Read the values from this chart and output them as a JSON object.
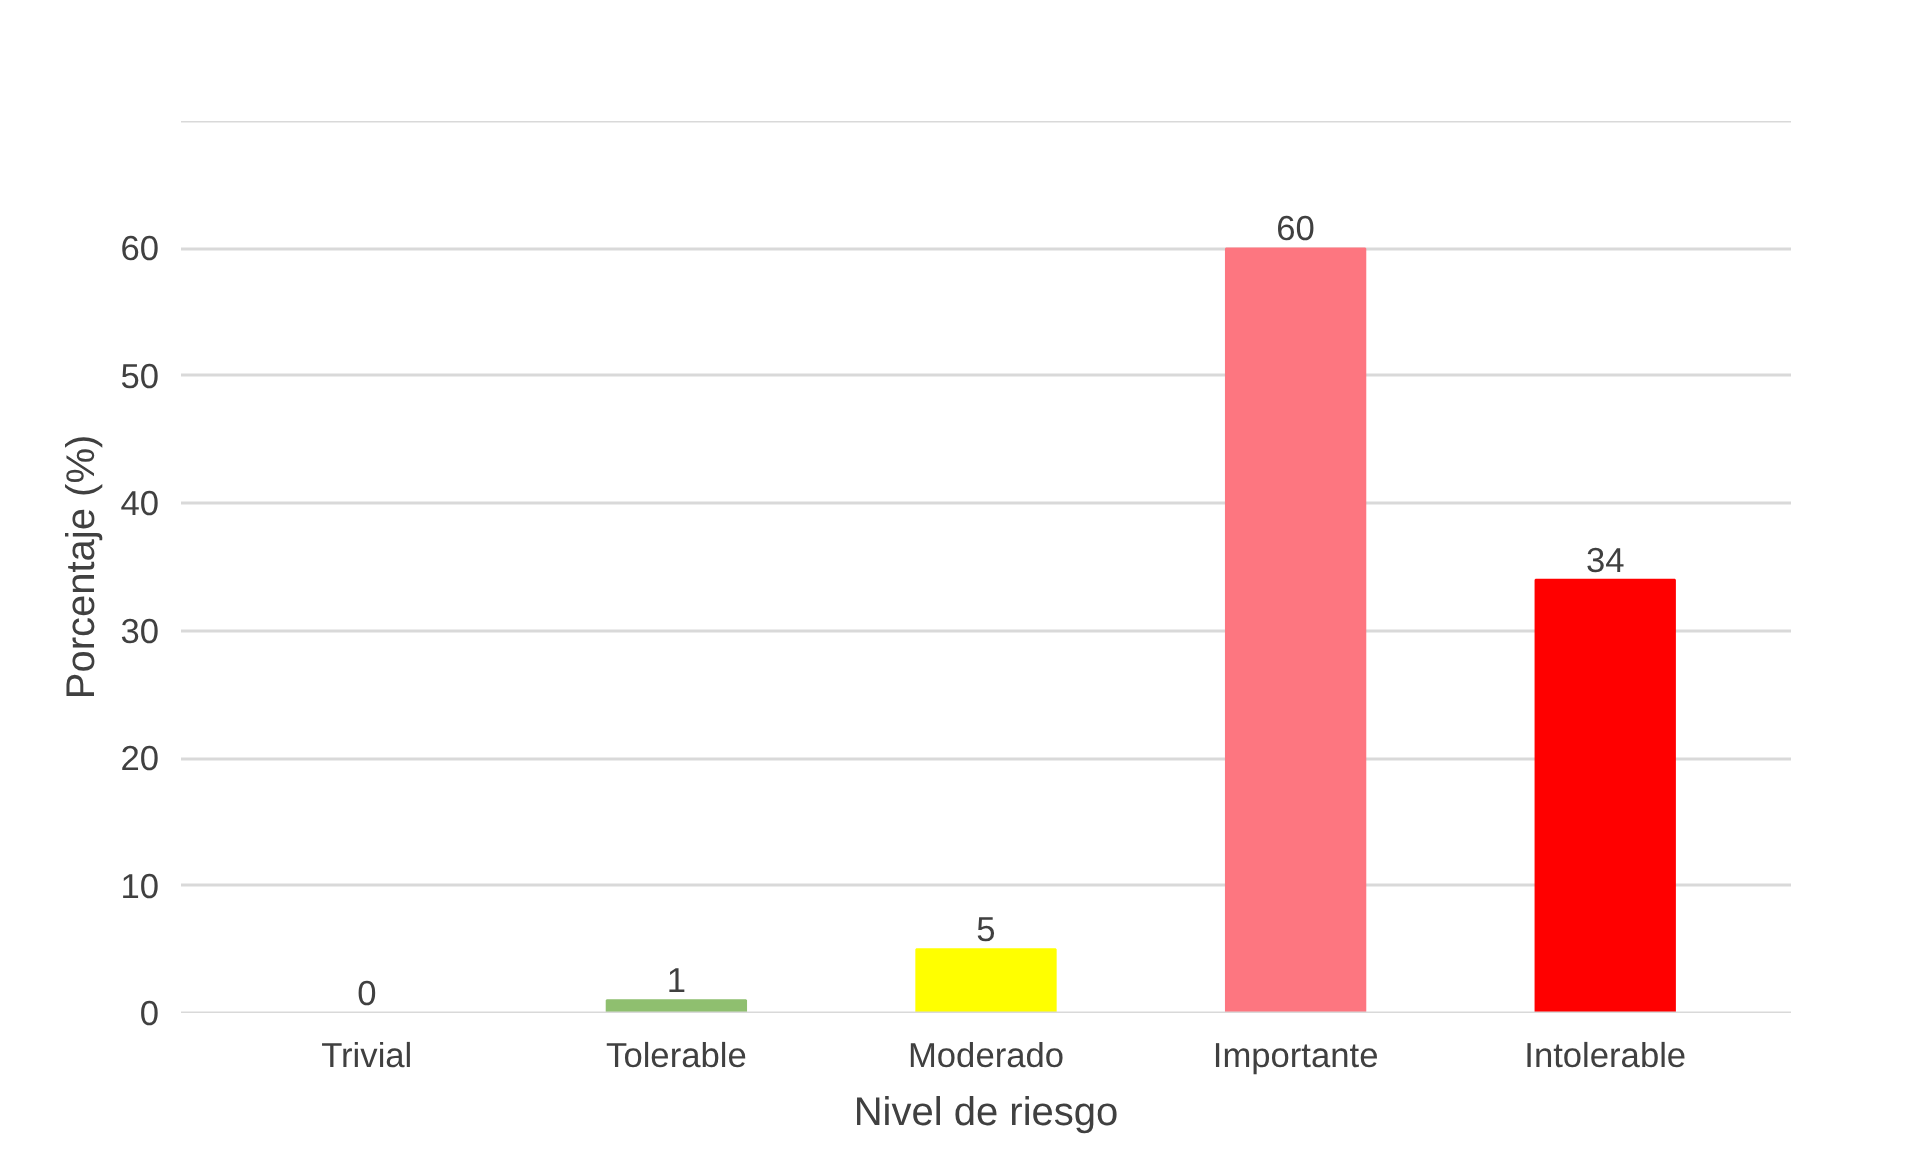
{
  "chart_data": {
    "type": "bar",
    "xlabel": "Nivel de riesgo",
    "ylabel": "Porcentaje (%)",
    "categories": [
      "Trivial",
      "Tolerable",
      "Moderado",
      "Importante",
      "Intolerable"
    ],
    "values": [
      0,
      1,
      5,
      60,
      34
    ],
    "colors": [
      "#00843f",
      "#8fbf6f",
      "#ffff00",
      "#fd7680",
      "#ff0000"
    ],
    "ylim": [
      0,
      70
    ],
    "yticks": [
      0,
      10,
      20,
      30,
      40,
      50,
      60,
      {
        "value": 70,
        "label": null
      }
    ],
    "grid": "y",
    "data_labels": true
  }
}
